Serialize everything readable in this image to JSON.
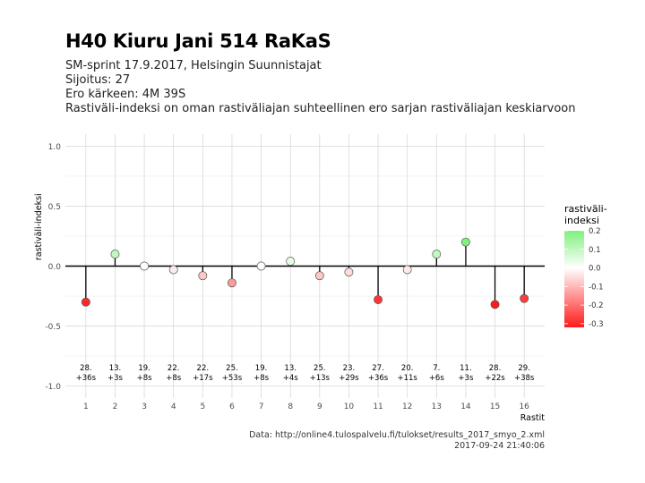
{
  "title": "H40 Kiuru Jani 514 RaKaS",
  "subtitle_lines": [
    "SM-sprint 17.9.2017, Helsingin Suunnistajat",
    "Sijoitus: 27",
    "Ero kärkeen: 4M 39S",
    "Rastiväli-indeksi on oman rastiväliajan suhteellinen ero sarjan rastiväliajan keskiarvoon"
  ],
  "caption_lines": [
    "Data: http://online4.tulospalvelu.fi/tulokset/results_2017_smyo_2.xml",
    "2017-09-24 21:40:06"
  ],
  "chart_data": {
    "type": "scatter",
    "xlabel": "Rastit",
    "ylabel": "rastiväli-indeksi",
    "ylim": [
      -1.0,
      1.0
    ],
    "yticks": [
      "1.0",
      "0.5",
      "0.0",
      "-0.5",
      "-1.0"
    ],
    "ytick_values": [
      1.0,
      0.5,
      0.0,
      -0.5,
      -1.0
    ],
    "x": [
      1,
      2,
      3,
      4,
      5,
      6,
      7,
      8,
      9,
      10,
      11,
      12,
      13,
      14,
      15,
      16
    ],
    "values": [
      -0.3,
      0.1,
      0.0,
      -0.03,
      -0.08,
      -0.14,
      0.0,
      0.04,
      -0.08,
      -0.05,
      -0.28,
      -0.03,
      0.1,
      0.2,
      -0.32,
      -0.27
    ],
    "labels": [
      [
        "28.",
        "+36s"
      ],
      [
        "13.",
        "+3s"
      ],
      [
        "19.",
        "+8s"
      ],
      [
        "22.",
        "+8s"
      ],
      [
        "22.",
        "+17s"
      ],
      [
        "25.",
        "+53s"
      ],
      [
        "19.",
        "+8s"
      ],
      [
        "13.",
        "+4s"
      ],
      [
        "25.",
        "+13s"
      ],
      [
        "23.",
        "+29s"
      ],
      [
        "27.",
        "+36s"
      ],
      [
        "20.",
        "+11s"
      ],
      [
        "7.",
        "+6s"
      ],
      [
        "11.",
        "+3s"
      ],
      [
        "28.",
        "+22s"
      ],
      [
        "29.",
        "+38s"
      ]
    ],
    "legend": {
      "title_lines": [
        "rastiväli-",
        "indeksi"
      ],
      "ticks": [
        "0.2",
        "0.1",
        "0.0",
        "-0.1",
        "-0.2",
        "-0.3"
      ],
      "tick_values": [
        0.2,
        0.1,
        0.0,
        -0.1,
        -0.2,
        -0.3
      ],
      "range": [
        -0.32,
        0.2
      ],
      "position": "right"
    },
    "colors": {
      "low": "#ff1a1a",
      "mid": "#ffffff",
      "high": "#80f080"
    },
    "grid": true
  }
}
